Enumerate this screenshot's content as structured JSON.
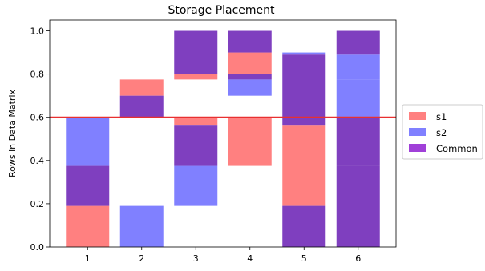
{
  "chart_data": {
    "type": "bar",
    "title": "Storage Placement",
    "xlabel": "",
    "ylabel": "Rows in Data Matrix",
    "categories": [
      "1",
      "2",
      "3",
      "4",
      "5",
      "6"
    ],
    "ylim": [
      0,
      1.05
    ],
    "yticks": [
      "0.0",
      "0.2",
      "0.4",
      "0.6",
      "0.8",
      "1.0"
    ],
    "legend_position": "center-right",
    "series": [
      {
        "name": "s1",
        "color": "#ff8080",
        "segments": [
          {
            "category": "1",
            "from": 0.0,
            "to": 0.19
          },
          {
            "category": "2",
            "from": 0.7,
            "to": 0.775
          },
          {
            "category": "3",
            "from": 0.565,
            "to": 0.6
          },
          {
            "category": "3",
            "from": 0.775,
            "to": 0.8
          },
          {
            "category": "4",
            "from": 0.375,
            "to": 0.6
          },
          {
            "category": "4",
            "from": 0.8,
            "to": 0.9
          },
          {
            "category": "5",
            "from": 0.19,
            "to": 0.565
          }
        ]
      },
      {
        "name": "s2",
        "color": "#8080ff",
        "segments": [
          {
            "category": "1",
            "from": 0.375,
            "to": 0.6
          },
          {
            "category": "2",
            "from": 0.0,
            "to": 0.19
          },
          {
            "category": "3",
            "from": 0.19,
            "to": 0.375
          },
          {
            "category": "4",
            "from": 0.7,
            "to": 0.775
          },
          {
            "category": "5",
            "from": 0.89,
            "to": 0.9
          },
          {
            "category": "6",
            "from": 0.6,
            "to": 0.775
          },
          {
            "category": "6",
            "from": 0.775,
            "to": 0.89
          }
        ]
      },
      {
        "name": "Common",
        "color": "#7f3fbf",
        "segments": [
          {
            "category": "1",
            "from": 0.19,
            "to": 0.375
          },
          {
            "category": "2",
            "from": 0.6,
            "to": 0.7
          },
          {
            "category": "3",
            "from": 0.375,
            "to": 0.565
          },
          {
            "category": "3",
            "from": 0.8,
            "to": 1.0
          },
          {
            "category": "4",
            "from": 0.775,
            "to": 0.8
          },
          {
            "category": "4",
            "from": 0.9,
            "to": 1.0
          },
          {
            "category": "5",
            "from": 0.0,
            "to": 0.19
          },
          {
            "category": "5",
            "from": 0.565,
            "to": 0.89
          },
          {
            "category": "6",
            "from": 0.0,
            "to": 0.375
          },
          {
            "category": "6",
            "from": 0.375,
            "to": 0.6
          },
          {
            "category": "6",
            "from": 0.89,
            "to": 1.0
          }
        ]
      }
    ],
    "hline": {
      "y": 0.6,
      "color": "#e83030"
    },
    "legend_colors": {
      "s1": "#ff8080",
      "s2": "#8080ff",
      "Common": "#a040d8"
    }
  }
}
